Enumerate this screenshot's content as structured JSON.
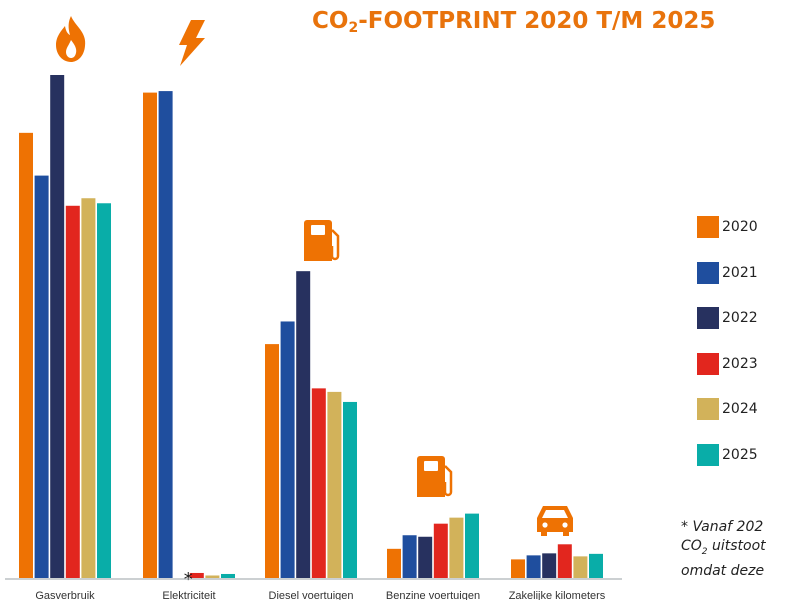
{
  "title": {
    "prefix": "CO",
    "sub": "2",
    "suffix": "-FOOTPRINT 2020 T/M 2025"
  },
  "note": {
    "line1": "* Vanaf 202",
    "line2_prefix": "CO",
    "line2_sub": "2",
    "line2_suffix": " uitstoot",
    "line3": "omdat deze"
  },
  "chart_data": {
    "type": "bar",
    "title": "CO2-FOOTPRINT 2020 T/M 2025",
    "xlabel": "",
    "ylabel": "",
    "ylim": [
      0,
      100
    ],
    "grid": false,
    "legend_position": "right",
    "categories": [
      "Gasverbruik",
      "Elektriciteit",
      "Diesel voertuigen",
      "Benzine voertuigen",
      "Zakelijke kilometers"
    ],
    "category_icons": [
      "flame-icon",
      "lightning-icon",
      "fuel-pump-icon",
      "fuel-pump-icon",
      "car-icon"
    ],
    "asterisk_marker": {
      "category": "Elektriciteit",
      "symbol": "*",
      "color": "#1a1a1a"
    },
    "series": [
      {
        "name": "2020",
        "color": "#ee7203",
        "values": [
          88.5,
          96.5,
          46.5,
          5.8,
          3.7
        ]
      },
      {
        "name": "2021",
        "color": "#1f4e9e",
        "values": [
          80.0,
          96.8,
          51.0,
          8.5,
          4.5
        ]
      },
      {
        "name": "2022",
        "color": "#27315f",
        "values": [
          100.0,
          null,
          61.0,
          8.2,
          4.9
        ]
      },
      {
        "name": "2023",
        "color": "#e2261e",
        "values": [
          74.0,
          1.0,
          37.7,
          10.8,
          6.7
        ]
      },
      {
        "name": "2024",
        "color": "#d2b25a",
        "values": [
          75.5,
          0.5,
          37.0,
          12.0,
          4.3
        ]
      },
      {
        "name": "2025",
        "color": "#09ada8",
        "values": [
          74.5,
          0.8,
          35.0,
          12.8,
          4.8
        ]
      }
    ]
  }
}
